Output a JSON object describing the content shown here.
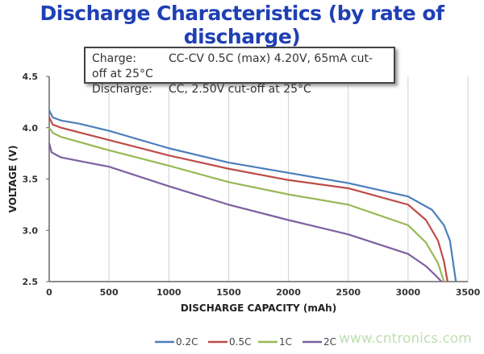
{
  "title": "Discharge Characteristics (by rate of discharge)",
  "note": {
    "charge_label": "Charge:",
    "charge_text": "CC-CV 0.5C (max) 4.20V, 65mA cut-off at 25°C",
    "discharge_label": "Discharge:",
    "discharge_text": "CC, 2.50V cut-off at 25°C"
  },
  "watermark": "www.cntronics.com",
  "chart_data": {
    "type": "line",
    "xlabel": "DISCHARGE CAPACITY (mAh)",
    "ylabel": "VOLTAGE (V)",
    "xlim": [
      0,
      3500
    ],
    "ylim": [
      2.5,
      4.5
    ],
    "xticks": [
      0,
      500,
      1000,
      1500,
      2000,
      2500,
      3000,
      3500
    ],
    "yticks": [
      "2.5",
      "3.0",
      "3.5",
      "4.0",
      "4.5"
    ],
    "grid": "vertical",
    "legend": "bottom",
    "series": [
      {
        "name": "0.2C",
        "color": "#4a7ebb",
        "points": [
          [
            0,
            4.17
          ],
          [
            30,
            4.1
          ],
          [
            100,
            4.07
          ],
          [
            250,
            4.04
          ],
          [
            500,
            3.97
          ],
          [
            1000,
            3.8
          ],
          [
            1500,
            3.66
          ],
          [
            2000,
            3.56
          ],
          [
            2500,
            3.46
          ],
          [
            3000,
            3.33
          ],
          [
            3200,
            3.2
          ],
          [
            3300,
            3.05
          ],
          [
            3350,
            2.9
          ],
          [
            3400,
            2.5
          ]
        ]
      },
      {
        "name": "0.5C",
        "color": "#be4b48",
        "points": [
          [
            0,
            4.1
          ],
          [
            30,
            4.03
          ],
          [
            100,
            4.0
          ],
          [
            500,
            3.88
          ],
          [
            1000,
            3.73
          ],
          [
            1500,
            3.6
          ],
          [
            2000,
            3.49
          ],
          [
            2500,
            3.41
          ],
          [
            3000,
            3.25
          ],
          [
            3150,
            3.1
          ],
          [
            3250,
            2.9
          ],
          [
            3300,
            2.7
          ],
          [
            3330,
            2.5
          ]
        ]
      },
      {
        "name": "1C",
        "color": "#98b954",
        "points": [
          [
            0,
            4.0
          ],
          [
            30,
            3.95
          ],
          [
            100,
            3.91
          ],
          [
            500,
            3.78
          ],
          [
            1000,
            3.63
          ],
          [
            1500,
            3.47
          ],
          [
            2000,
            3.35
          ],
          [
            2500,
            3.25
          ],
          [
            3000,
            3.05
          ],
          [
            3150,
            2.88
          ],
          [
            3250,
            2.68
          ],
          [
            3300,
            2.5
          ]
        ]
      },
      {
        "name": "2C",
        "color": "#7d60a0",
        "points": [
          [
            0,
            3.85
          ],
          [
            20,
            3.76
          ],
          [
            100,
            3.71
          ],
          [
            500,
            3.62
          ],
          [
            1000,
            3.43
          ],
          [
            1500,
            3.25
          ],
          [
            2000,
            3.1
          ],
          [
            2500,
            2.96
          ],
          [
            3000,
            2.77
          ],
          [
            3150,
            2.65
          ],
          [
            3230,
            2.56
          ],
          [
            3280,
            2.5
          ]
        ]
      }
    ]
  }
}
